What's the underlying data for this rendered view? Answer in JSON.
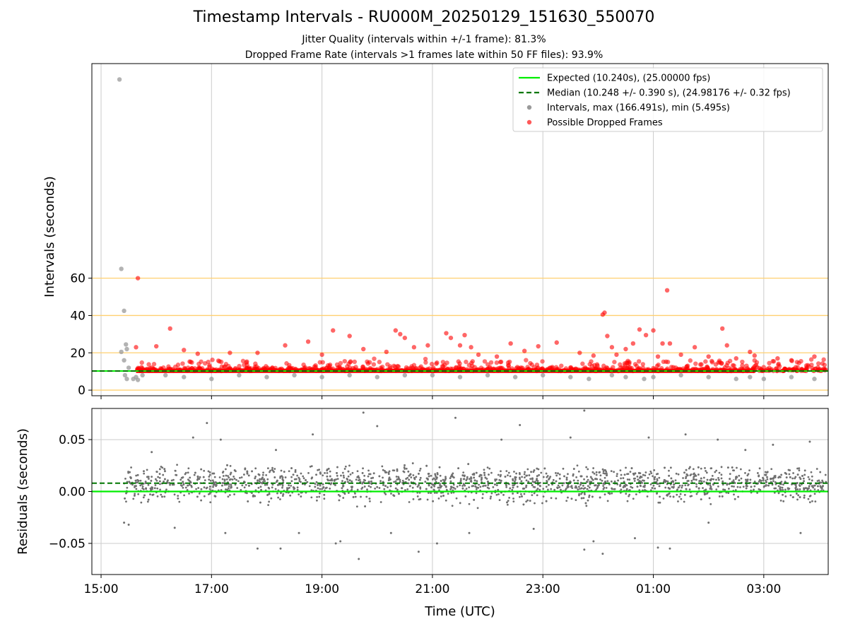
{
  "title": "Timestamp Intervals - RU000M_20250129_151630_550070",
  "subtitle_jitter": "Jitter Quality (intervals within +/-1 frame): 81.3%",
  "subtitle_dropped": "Dropped Frame Rate (intervals >1 frames late within 50 FF files): 93.9%",
  "colors": {
    "expected": "#00ee00",
    "median": "#007700",
    "intervals": "#9a9a9a",
    "dropped": "#ff0000",
    "reference_lines": "#ffd070",
    "residuals": "#707070",
    "grid": "#cccccc"
  },
  "chart_data": [
    {
      "type": "scatter",
      "panel": "intervals",
      "xlabel": "",
      "ylabel": "Intervals (seconds)",
      "xlim": [
        "14:50",
        "04:10"
      ],
      "ylim": [
        -3,
        175
      ],
      "y_ticks": [
        0,
        20,
        40,
        60
      ],
      "x_ticks": [
        "15:00",
        "17:00",
        "19:00",
        "21:00",
        "23:00",
        "01:00",
        "03:00"
      ],
      "grid": "vertical",
      "reference_lines_y": [
        0,
        20,
        40,
        60
      ],
      "legend_position": "top-right",
      "legend": [
        {
          "label": "Expected (10.240s), (25.00000 fps)",
          "style": "solid-line"
        },
        {
          "label": "Median (10.248 +/- 0.390 s), (24.98176 +/- 0.32 fps)",
          "style": "dashed-line"
        },
        {
          "label": "Intervals, max (166.491s), min (5.495s)",
          "style": "gray-dot"
        },
        {
          "label": "Possible Dropped Frames",
          "style": "red-dot"
        }
      ],
      "expected_value": 10.24,
      "median_value": 10.248,
      "series": [
        {
          "name": "Intervals, max (166.491s), min (5.495s)",
          "points": [
            [
              "15:20",
              166.5
            ],
            [
              "15:22",
              65
            ],
            [
              "15:25",
              42.5
            ],
            [
              "15:27",
              24.5
            ],
            [
              "15:28",
              22
            ],
            [
              "15:22",
              20.5
            ],
            [
              "15:25",
              16
            ],
            [
              "15:30",
              12
            ],
            [
              "15:26",
              8
            ],
            [
              "15:28",
              6
            ],
            [
              "15:35",
              6
            ],
            [
              "15:38",
              7
            ],
            [
              "15:40",
              5.5
            ],
            [
              "15:45",
              8
            ],
            [
              "16:10",
              8
            ],
            [
              "16:30",
              7
            ],
            [
              "17:00",
              6
            ],
            [
              "17:30",
              8
            ],
            [
              "18:00",
              7
            ],
            [
              "18:30",
              8
            ],
            [
              "19:00",
              7
            ],
            [
              "19:30",
              8
            ],
            [
              "20:00",
              7
            ],
            [
              "20:30",
              8
            ],
            [
              "21:00",
              8
            ],
            [
              "21:30",
              7
            ],
            [
              "22:00",
              8
            ],
            [
              "22:30",
              7
            ],
            [
              "23:00",
              8
            ],
            [
              "23:30",
              7
            ],
            [
              "23:50",
              6
            ],
            [
              "00:15",
              8
            ],
            [
              "00:30",
              7
            ],
            [
              "00:50",
              6
            ],
            [
              "01:00",
              7
            ],
            [
              "01:30",
              8
            ],
            [
              "02:00",
              7
            ],
            [
              "02:30",
              6
            ],
            [
              "02:45",
              7
            ],
            [
              "03:00",
              6
            ],
            [
              "03:30",
              7
            ],
            [
              "03:55",
              6
            ]
          ]
        },
        {
          "name": "Possible Dropped Frames",
          "points": [
            [
              "15:40",
              60
            ],
            [
              "15:38",
              23
            ],
            [
              "16:15",
              33
            ],
            [
              "16:00",
              23.5
            ],
            [
              "16:30",
              21.5
            ],
            [
              "16:45",
              19.5
            ],
            [
              "17:20",
              20
            ],
            [
              "17:50",
              20
            ],
            [
              "18:20",
              24
            ],
            [
              "18:45",
              26
            ],
            [
              "19:00",
              19
            ],
            [
              "19:12",
              32
            ],
            [
              "19:30",
              29
            ],
            [
              "19:45",
              22
            ],
            [
              "20:10",
              20.5
            ],
            [
              "20:20",
              32
            ],
            [
              "20:25",
              30
            ],
            [
              "20:30",
              28
            ],
            [
              "20:40",
              23
            ],
            [
              "20:55",
              24
            ],
            [
              "21:15",
              30.5
            ],
            [
              "21:20",
              28
            ],
            [
              "21:30",
              24
            ],
            [
              "21:35",
              29.5
            ],
            [
              "21:42",
              23
            ],
            [
              "21:50",
              19
            ],
            [
              "22:10",
              18
            ],
            [
              "22:25",
              25
            ],
            [
              "22:40",
              21
            ],
            [
              "22:55",
              23.5
            ],
            [
              "23:15",
              25.5
            ],
            [
              "23:40",
              20
            ],
            [
              "23:55",
              18.5
            ],
            [
              "00:05",
              40.5
            ],
            [
              "00:07",
              41.5
            ],
            [
              "00:10",
              29
            ],
            [
              "00:15",
              23
            ],
            [
              "00:20",
              19
            ],
            [
              "00:30",
              22
            ],
            [
              "00:38",
              25
            ],
            [
              "00:45",
              32.5
            ],
            [
              "00:52",
              29.5
            ],
            [
              "01:00",
              32
            ],
            [
              "01:05",
              18
            ],
            [
              "01:10",
              25
            ],
            [
              "01:15",
              53.5
            ],
            [
              "01:18",
              25
            ],
            [
              "01:30",
              19
            ],
            [
              "01:45",
              23
            ],
            [
              "02:00",
              18
            ],
            [
              "02:15",
              33
            ],
            [
              "02:20",
              24
            ],
            [
              "02:30",
              17
            ],
            [
              "02:45",
              20.5
            ],
            [
              "02:50",
              18.5
            ],
            [
              "03:15",
              17
            ],
            [
              "03:30",
              16
            ],
            [
              "03:55",
              18
            ]
          ]
        }
      ]
    },
    {
      "type": "scatter",
      "panel": "residuals",
      "xlabel": "Time (UTC)",
      "ylabel": "Residuals (seconds)",
      "xlim": [
        "14:50",
        "04:10"
      ],
      "ylim": [
        -0.08,
        0.08
      ],
      "y_ticks": [
        0.05,
        0.0,
        -0.05
      ],
      "y_tick_labels": [
        "0.05",
        "0.00",
        "−0.05"
      ],
      "x_ticks": [
        "15:00",
        "17:00",
        "19:00",
        "21:00",
        "23:00",
        "01:00",
        "03:00"
      ],
      "x_tick_labels": [
        "15:00",
        "17:00",
        "19:00",
        "21:00",
        "23:00",
        "01:00",
        "03:00"
      ],
      "grid": "both",
      "expected_value": 0.0,
      "median_value": 0.008,
      "series": [
        {
          "name": "",
          "points": [
            [
              "16:55",
              0.066
            ],
            [
              "19:45",
              0.076
            ],
            [
              "20:00",
              0.063
            ],
            [
              "21:25",
              0.071
            ],
            [
              "22:35",
              0.064
            ],
            [
              "23:45",
              0.078
            ],
            [
              "19:40",
              -0.065
            ],
            [
              "20:45",
              -0.058
            ],
            [
              "23:45",
              -0.056
            ],
            [
              "23:55",
              -0.048
            ],
            [
              "00:05",
              -0.06
            ],
            [
              "01:05",
              -0.054
            ],
            [
              "01:18",
              -0.055
            ],
            [
              "17:50",
              -0.055
            ],
            [
              "18:15",
              -0.055
            ],
            [
              "19:15",
              -0.05
            ],
            [
              "19:20",
              -0.048
            ],
            [
              "21:05",
              -0.05
            ],
            [
              "01:35",
              0.055
            ],
            [
              "00:55",
              0.052
            ],
            [
              "02:10",
              0.05
            ],
            [
              "15:55",
              0.038
            ],
            [
              "16:40",
              0.052
            ],
            [
              "17:10",
              0.05
            ],
            [
              "18:10",
              0.04
            ],
            [
              "18:50",
              0.055
            ],
            [
              "22:15",
              0.05
            ],
            [
              "23:30",
              0.052
            ],
            [
              "02:40",
              0.04
            ],
            [
              "03:10",
              0.045
            ],
            [
              "03:50",
              0.048
            ],
            [
              "16:20",
              -0.035
            ],
            [
              "15:25",
              -0.03
            ],
            [
              "15:30",
              -0.032
            ],
            [
              "17:15",
              -0.04
            ],
            [
              "18:35",
              -0.04
            ],
            [
              "20:15",
              -0.04
            ],
            [
              "21:40",
              -0.04
            ],
            [
              "22:50",
              -0.036
            ],
            [
              "00:40",
              -0.045
            ],
            [
              "02:00",
              -0.03
            ],
            [
              "03:40",
              -0.04
            ]
          ],
          "note": "Dense cloud of ~2000 residual points between about -0.03 and 0.03 s across the whole time range, centered near 0.008 s."
        }
      ]
    }
  ]
}
